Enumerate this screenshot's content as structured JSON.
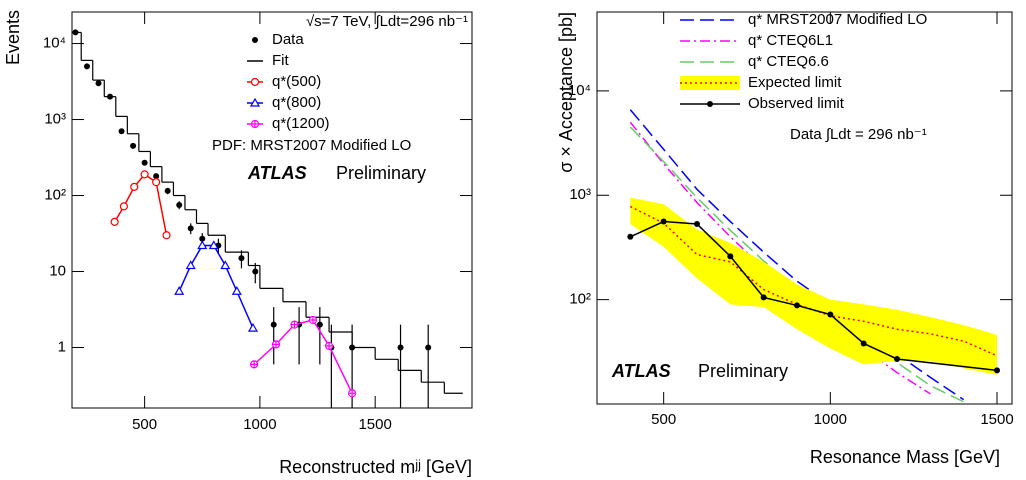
{
  "chart_data": [
    {
      "type": "line",
      "xlabel": "Reconstructed mʲʲ [GeV]",
      "ylabel": "Events",
      "xlim": [
        185,
        1920
      ],
      "ylim": [
        0.16,
        26000
      ],
      "log_y": true,
      "xticks": [
        500,
        1000,
        1500
      ],
      "yticks": [
        1,
        10,
        {
          "value": 100,
          "label": "10²"
        },
        {
          "value": 1000,
          "label": "10³"
        },
        {
          "value": 10000,
          "label": "10⁴"
        }
      ],
      "annotations": [
        "√s=7 TeV, ∫Ldt=296 nb⁻¹",
        "PDF: MRST2007 Modified LO"
      ],
      "experiment": "ATLAS",
      "status": "Preliminary",
      "series": [
        {
          "name": "Data",
          "style": "points",
          "color": "#000000",
          "x": [
            200,
            250,
            300,
            350,
            400,
            450,
            500,
            550,
            600,
            650,
            700,
            750,
            820,
            920,
            980,
            1060,
            1170,
            1260,
            1310,
            1400,
            1610,
            1730
          ],
          "values": [
            14000,
            5000,
            3000,
            2000,
            700,
            450,
            270,
            180,
            115,
            75,
            37,
            27,
            22,
            15,
            10,
            2,
            2,
            2,
            1,
            1,
            1,
            1
          ],
          "errors": [
            120,
            70,
            55,
            45,
            26,
            21,
            16,
            13,
            11,
            9,
            6,
            5,
            5,
            4,
            3,
            1.4,
            1.4,
            1.4,
            1,
            1,
            1,
            1
          ]
        },
        {
          "name": "Fit",
          "style": "step",
          "color": "#000000",
          "bins": [
            200,
            225,
            275,
            325,
            375,
            425,
            475,
            525,
            575,
            625,
            675,
            725,
            775,
            850,
            950,
            1000,
            1100,
            1200,
            1300,
            1400,
            1500,
            1600,
            1700,
            1800,
            1880
          ],
          "values": [
            14000,
            6000,
            3300,
            2000,
            1100,
            650,
            380,
            240,
            150,
            100,
            65,
            43,
            30,
            18,
            12,
            6,
            4,
            2.5,
            1.6,
            1.0,
            0.7,
            0.5,
            0.35,
            0.25
          ]
        },
        {
          "name": "q*(500)",
          "style": "line",
          "marker": "circle",
          "color": "#ff0000",
          "x": [
            370,
            410,
            455,
            500,
            550,
            595
          ],
          "values": [
            45,
            72,
            130,
            190,
            150,
            30
          ]
        },
        {
          "name": "q*(800)",
          "style": "line",
          "marker": "triangle",
          "color": "#0000ff",
          "x": [
            650,
            700,
            750,
            800,
            850,
            900,
            970
          ],
          "values": [
            5.5,
            12,
            22,
            22,
            12,
            5.5,
            1.8
          ]
        },
        {
          "name": "q*(1200)",
          "style": "line",
          "marker": "crossed-circle",
          "color": "#ff00ff",
          "x": [
            975,
            1070,
            1150,
            1230,
            1300,
            1400
          ],
          "values": [
            0.6,
            1.1,
            2,
            2.3,
            1.05,
            0.25
          ]
        }
      ]
    },
    {
      "type": "line",
      "xlabel": "Resonance Mass [GeV]",
      "ylabel": "σ × Acceptance [pb]",
      "xlim": [
        300,
        1545
      ],
      "ylim": [
        10,
        57000
      ],
      "log_y": true,
      "xticks": [
        500,
        1000,
        1500
      ],
      "yticks": [
        {
          "value": 100,
          "label": "10²"
        },
        {
          "value": 1000,
          "label": "10³"
        },
        {
          "value": 10000,
          "label": "10⁴"
        }
      ],
      "annotations": [
        "Data ∫Ldt = 296 nb⁻¹"
      ],
      "experiment": "ATLAS",
      "status": "Preliminary",
      "series": [
        {
          "name": "q* MRST2007 Modified LO",
          "style": "dashed",
          "color": "#0000ff",
          "x": [
            400,
            500,
            600,
            700,
            800,
            900,
            1000,
            1100,
            1200,
            1300,
            1400
          ],
          "values": [
            6600,
            2750,
            1140,
            560,
            285,
            150,
            90,
            52,
            30,
            18,
            11
          ]
        },
        {
          "name": "q* CTEQ6L1",
          "style": "dashdot",
          "color": "#ff00ff",
          "x": [
            400,
            500,
            600,
            700,
            800,
            900,
            1000,
            1100,
            1200,
            1300
          ],
          "values": [
            5000,
            2000,
            850,
            400,
            200,
            105,
            60,
            34,
            20,
            12.5
          ]
        },
        {
          "name": "q* CTEQ6.6",
          "style": "dashed",
          "color": "#66cc66",
          "x": [
            400,
            500,
            600,
            700,
            800,
            900,
            1000,
            1100,
            1200,
            1300,
            1400
          ],
          "values": [
            4500,
            2100,
            950,
            460,
            235,
            125,
            72,
            42,
            25,
            15,
            10.5
          ]
        },
        {
          "name": "Expected limit",
          "style": "band",
          "color": "#ffff00",
          "line_color": "#ff0000",
          "x": [
            400,
            500,
            600,
            700,
            800,
            900,
            1000,
            1100,
            1200,
            1300,
            1400,
            1500
          ],
          "values": [
            780,
            540,
            270,
            230,
            125,
            90,
            70,
            62,
            52,
            47,
            40,
            29
          ],
          "low": [
            530,
            320,
            160,
            90,
            85,
            52,
            34,
            24,
            26,
            26,
            22,
            19
          ],
          "high": [
            950,
            820,
            470,
            350,
            230,
            140,
            100,
            90,
            80,
            68,
            57,
            46
          ]
        },
        {
          "name": "Observed limit",
          "style": "line",
          "marker": "dot",
          "color": "#000000",
          "x": [
            400,
            500,
            600,
            700,
            800,
            900,
            1000,
            1100,
            1200,
            1500
          ],
          "values": [
            400,
            560,
            530,
            260,
            105,
            88,
            72,
            38,
            27,
            21
          ]
        }
      ]
    }
  ]
}
